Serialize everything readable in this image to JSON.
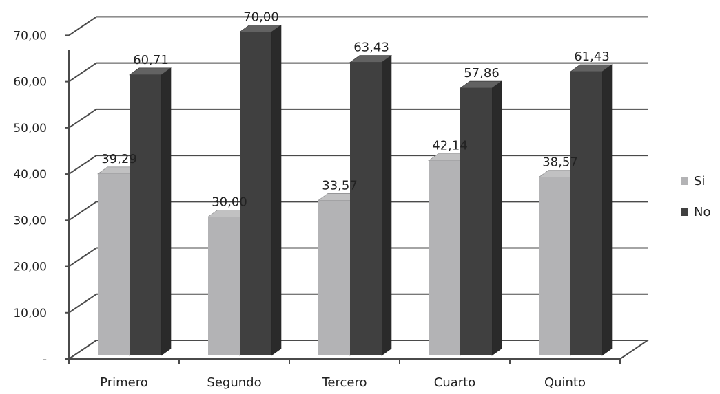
{
  "chart_data": {
    "type": "bar",
    "categories": [
      "Primero",
      "Segundo",
      "Tercero",
      "Cuarto",
      "Quinto"
    ],
    "series": [
      {
        "name": "Si",
        "values": [
          39.29,
          30.0,
          33.57,
          42.14,
          38.57
        ],
        "labels": [
          "39,29",
          "30,00",
          "33,57",
          "42,14",
          "38,57"
        ],
        "color": "#b3b3b5"
      },
      {
        "name": "No",
        "values": [
          60.71,
          70.0,
          63.43,
          57.86,
          61.43
        ],
        "labels": [
          "60,71",
          "70,00",
          "63,43",
          "57,86",
          "61,43"
        ],
        "color": "#404040"
      }
    ],
    "y_ticks": [
      0,
      10,
      20,
      30,
      40,
      50,
      60,
      70
    ],
    "y_tick_labels": [
      "-",
      "10,00",
      "20,00",
      "30,00",
      "40,00",
      "50,00",
      "60,00",
      "70,00"
    ],
    "ylim": [
      0,
      70
    ],
    "grid": true,
    "legend": "right",
    "style": "3d-clustered-column",
    "title": "",
    "xlabel": "",
    "ylabel": ""
  }
}
